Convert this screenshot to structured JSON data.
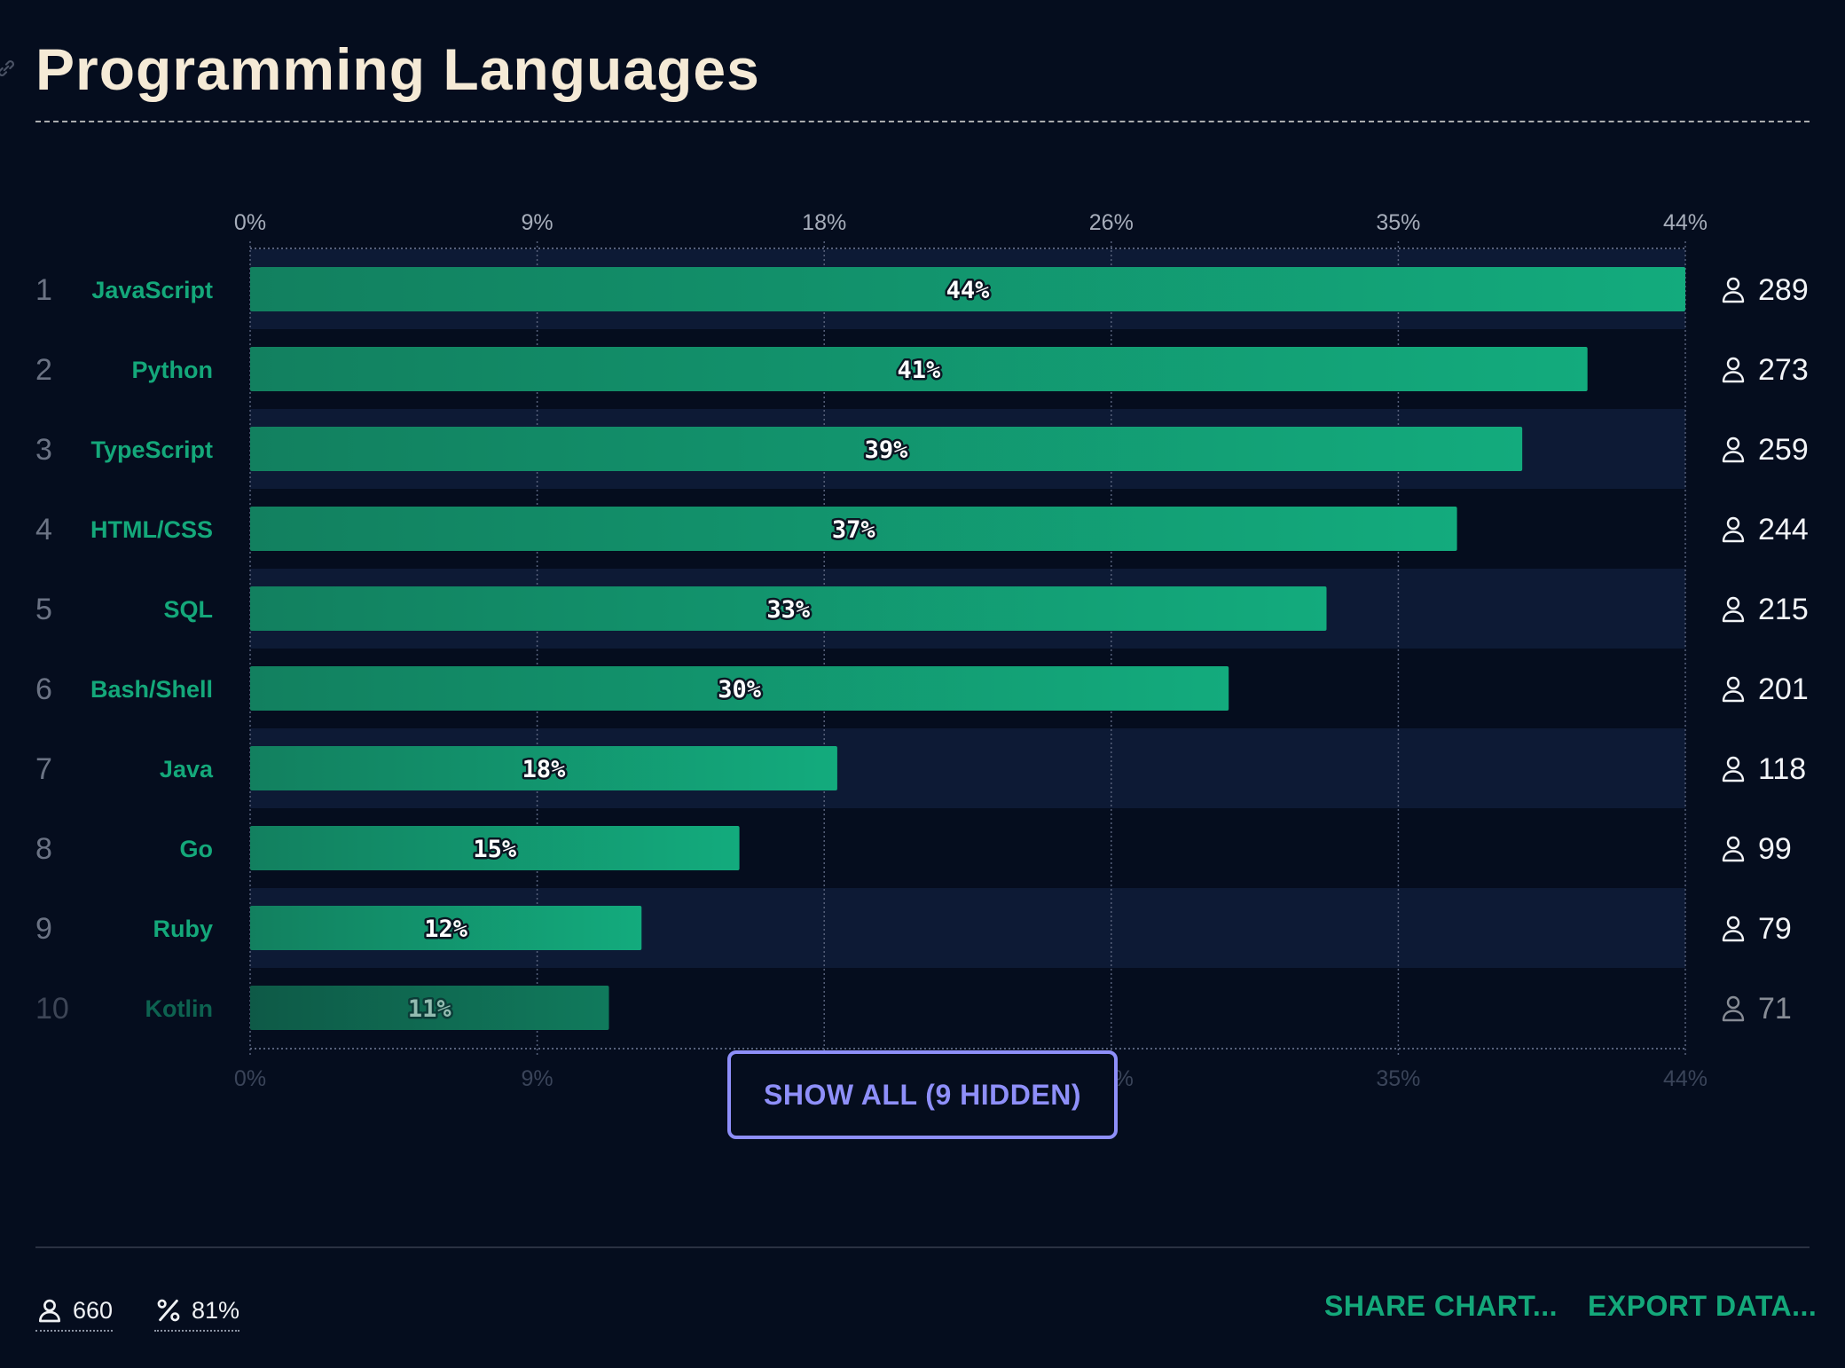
{
  "title": "Programming Languages",
  "chart_data": {
    "type": "bar",
    "orientation": "horizontal",
    "title": "Programming Languages",
    "x_ticks": [
      "0%",
      "9%",
      "18%",
      "26%",
      "35%",
      "44%"
    ],
    "xlim": [
      0,
      44
    ],
    "ranks": [
      1,
      2,
      3,
      4,
      5,
      6,
      7,
      8,
      9,
      10
    ],
    "categories": [
      "JavaScript",
      "Python",
      "TypeScript",
      "HTML/CSS",
      "SQL",
      "Bash/Shell",
      "Java",
      "Go",
      "Ruby",
      "Kotlin"
    ],
    "values": [
      44,
      41,
      39,
      37,
      33,
      30,
      18,
      15,
      12,
      11
    ],
    "value_labels": [
      "44%",
      "41%",
      "39%",
      "37%",
      "33%",
      "30%",
      "18%",
      "15%",
      "12%",
      "11%"
    ],
    "counts": [
      289,
      273,
      259,
      244,
      215,
      201,
      118,
      99,
      79,
      71
    ]
  },
  "show_all_label": "SHOW ALL (9 HIDDEN)",
  "footer": {
    "respondents": "660",
    "percentage": "81%",
    "share_label": "SHARE CHART...",
    "export_label": "EXPORT DATA..."
  },
  "colors": {
    "background": "#050d1e",
    "bar_start": "#12805f",
    "bar_end": "#13ab7d",
    "accent": "#14a87a",
    "button": "#8e8ff9",
    "title": "#f5ead6"
  }
}
